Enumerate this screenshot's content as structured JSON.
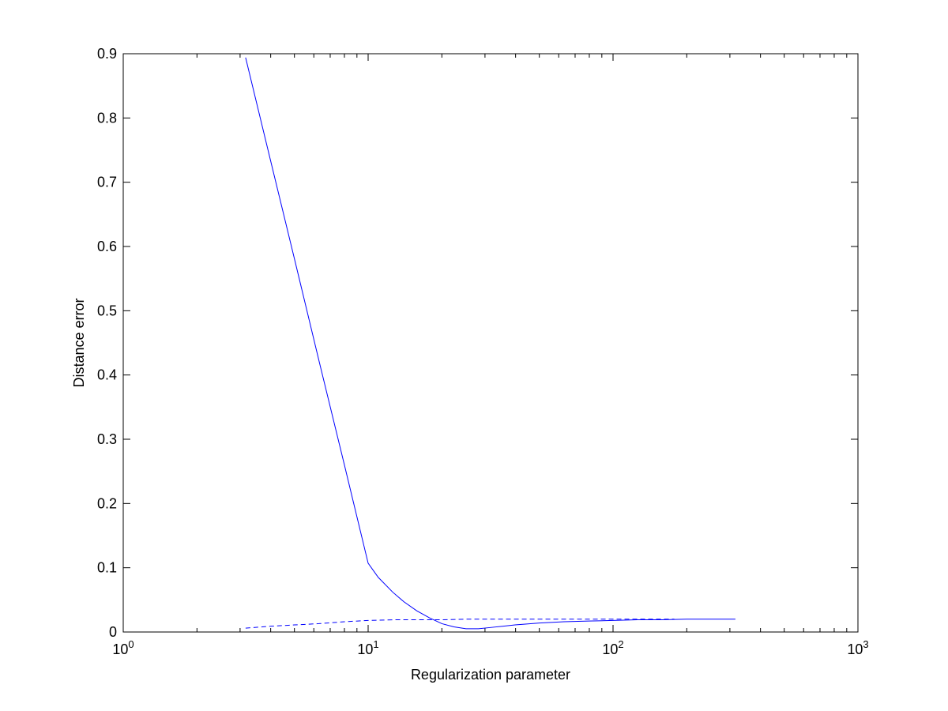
{
  "chart_data": {
    "type": "line",
    "xlabel": "Regularization parameter",
    "ylabel": "Distance error",
    "xscale": "log",
    "xlim": [
      1,
      1000
    ],
    "xticks": [
      {
        "value": 1,
        "label": "10^0"
      },
      {
        "value": 10,
        "label": "10^1"
      },
      {
        "value": 100,
        "label": "10^2"
      },
      {
        "value": 1000,
        "label": "10^3"
      }
    ],
    "minor_ticks": true,
    "ylim": [
      0,
      0.9
    ],
    "yticks": [
      0,
      0.1,
      0.2,
      0.3,
      0.4,
      0.5,
      0.6,
      0.7,
      0.8,
      0.9
    ],
    "series": [
      {
        "color": "#0000ff",
        "dash": false,
        "x": [
          3.16,
          4,
          5,
          6.3,
          8,
          10,
          11,
          12.6,
          14,
          15.8,
          17.8,
          20,
          22.4,
          25.1,
          28.2,
          31.6,
          39.8,
          50.1,
          63.1,
          79.4,
          100,
          126,
          158,
          200,
          251,
          316
        ],
        "values": [
          0.894,
          0.733,
          0.581,
          0.422,
          0.26,
          0.107,
          0.085,
          0.062,
          0.047,
          0.033,
          0.022,
          0.013,
          0.008,
          0.005,
          0.005,
          0.007,
          0.011,
          0.014,
          0.016,
          0.017,
          0.018,
          0.019,
          0.019,
          0.02,
          0.02,
          0.02
        ]
      },
      {
        "color": "#0000ff",
        "dash": true,
        "x": [
          3.16,
          4,
          5,
          6.3,
          8,
          10,
          12.6,
          15.8,
          20,
          25.1,
          31.6,
          50.1,
          100,
          178
        ],
        "values": [
          0.006,
          0.009,
          0.011,
          0.013,
          0.016,
          0.018,
          0.019,
          0.019,
          0.019,
          0.02,
          0.02,
          0.02,
          0.02,
          0.02
        ]
      }
    ]
  }
}
